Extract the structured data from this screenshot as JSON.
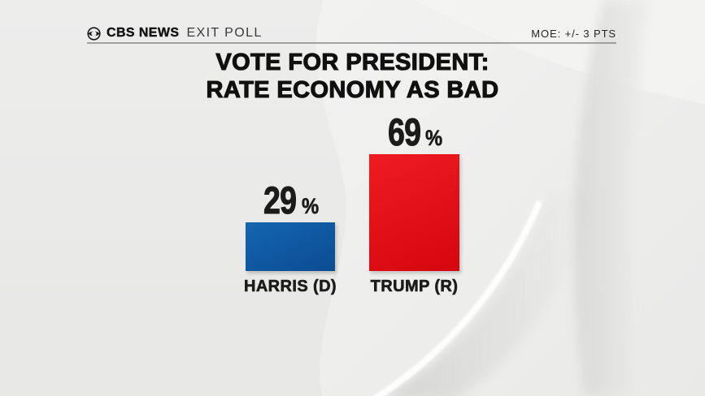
{
  "header": {
    "brand": "CBS NEWS",
    "program": "EXIT POLL",
    "moe": "MOE: +/- 3 PTS"
  },
  "title": {
    "line1": "VOTE FOR PRESIDENT:",
    "line2": "RATE ECONOMY AS BAD"
  },
  "chart_data": {
    "type": "bar",
    "title": "VOTE FOR PRESIDENT: RATE ECONOMY AS BAD",
    "categories": [
      "HARRIS (D)",
      "TRUMP (R)"
    ],
    "values": [
      29,
      69
    ],
    "unit": "%",
    "value_labels": [
      "29%",
      "69%"
    ],
    "series_colors": [
      "#0d569e",
      "#e11117"
    ],
    "bar_gradients": [
      [
        "#1565b0",
        "#0a4c92"
      ],
      [
        "#ef1b22",
        "#d4070d"
      ]
    ],
    "ylim": [
      0,
      100
    ],
    "grid": false,
    "legend": false,
    "moe_note": "MOE: +/- 3 PTS"
  },
  "colors": {
    "background": "#e9e9e8",
    "text": "#141414",
    "rule": "#8f8f8f"
  }
}
